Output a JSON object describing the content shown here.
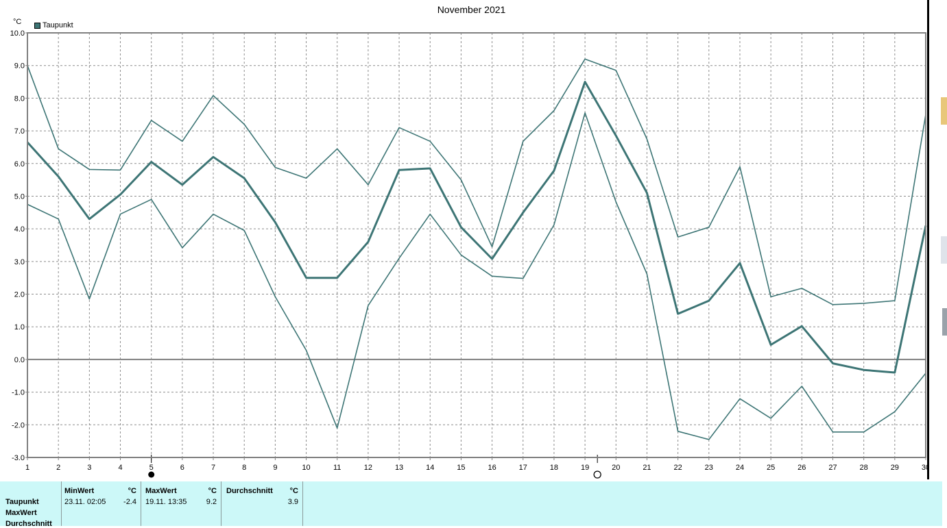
{
  "chart_data": {
    "type": "line",
    "title": "November 2021",
    "ylabel": "°C",
    "xlabel": "",
    "x": [
      1,
      2,
      3,
      4,
      5,
      6,
      7,
      8,
      9,
      10,
      11,
      12,
      13,
      14,
      15,
      16,
      17,
      18,
      19,
      20,
      21,
      22,
      23,
      24,
      25,
      26,
      27,
      28,
      29,
      30
    ],
    "ylim": [
      -3.0,
      10.0
    ],
    "yticks": [
      "10.0",
      "9.0",
      "8.0",
      "7.0",
      "6.0",
      "5.0",
      "4.0",
      "3.0",
      "2.0",
      "1.0",
      "0.0",
      "-1.0",
      "-2.0",
      "-3.0"
    ],
    "grid": true,
    "legend": "top-left",
    "series": [
      {
        "name": "Taupunkt",
        "role": "mean",
        "color": "#3d7575",
        "values": [
          6.65,
          5.6,
          4.3,
          5.05,
          6.05,
          5.35,
          6.2,
          5.55,
          4.2,
          2.5,
          2.5,
          3.6,
          5.8,
          5.85,
          4.05,
          3.08,
          4.5,
          5.78,
          8.5,
          6.85,
          5.1,
          1.4,
          1.8,
          2.95,
          0.45,
          1.02,
          -0.12,
          -0.32,
          -0.4,
          4.1
        ]
      },
      {
        "role": "max",
        "color": "#3d7575",
        "values": [
          9.0,
          6.45,
          5.82,
          5.8,
          7.32,
          6.68,
          8.08,
          7.2,
          5.88,
          5.55,
          6.45,
          5.35,
          7.1,
          6.68,
          5.5,
          3.45,
          6.68,
          7.62,
          9.2,
          8.85,
          6.75,
          3.75,
          4.05,
          5.9,
          1.92,
          2.18,
          1.68,
          1.72,
          1.8,
          7.5
        ]
      },
      {
        "role": "min",
        "color": "#3d7575",
        "values": [
          4.75,
          4.3,
          1.85,
          4.45,
          4.9,
          3.42,
          4.45,
          3.95,
          1.92,
          0.28,
          -2.1,
          1.65,
          3.1,
          4.45,
          3.2,
          2.55,
          2.48,
          4.12,
          7.55,
          4.82,
          2.62,
          -2.2,
          -2.45,
          -1.2,
          -1.8,
          -0.82,
          -2.22,
          -2.22,
          -1.6,
          -0.42
        ]
      }
    ]
  },
  "moon": {
    "new_moon_day": 5,
    "full_moon_day": 19.4
  },
  "colors": {
    "line": "#3d7575",
    "grid": "#8c8c8c",
    "zero_line": "#808080",
    "panel_bg": "#ccf8f8"
  },
  "stats": {
    "row_labels": [
      "Taupunkt",
      "MaxWert",
      "Durchschnitt"
    ],
    "min": {
      "header": "MinWert",
      "unit": "°C",
      "time": "23.11.  02:05",
      "value": "-2.4"
    },
    "max": {
      "header": "MaxWert",
      "unit": "°C",
      "time": "19.11.  13:35",
      "value": "9.2"
    },
    "avg": {
      "header": "Durchschnitt",
      "unit": "°C",
      "value": "3.9"
    }
  }
}
